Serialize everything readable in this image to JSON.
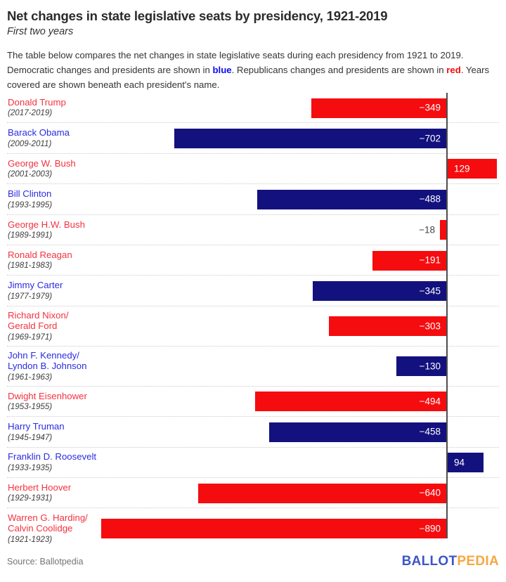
{
  "header": {
    "title": "Net changes in state legislative seats by presidency, 1921-2019",
    "subtitle": "First two years",
    "description_part1": "The table below compares the net changes in state legislative seats during each presidency from 1921 to 2019. Democratic changes and presidents are shown in ",
    "blue_word": "blue",
    "description_part2": ". Republicans changes and presidents are shown in ",
    "red_word": "red",
    "description_part3": ". Years covered are shown beneath each president's name."
  },
  "chart_data": {
    "type": "bar",
    "orientation": "horizontal",
    "title": "Net changes in state legislative seats by presidency, 1921-2019",
    "subtitle": "First two years",
    "value_label": "Net change in state legislative seats",
    "xlim": [
      -890,
      129
    ],
    "grid": "dotted row separators, vertical zero axis line",
    "legend": "none (color-coded: Democratic blue, Republican red)",
    "colors": {
      "democratic_bar": "#13117e",
      "republican_bar": "#f50c0f",
      "democratic_name": "#2b2be2",
      "republican_name": "#f43240",
      "blue_word": "#0b0bf5",
      "red_word": "#f50b0b",
      "zero_line": "#4d4d4d"
    },
    "rows": [
      {
        "president": "Donald Trump",
        "name_lines": [
          "Donald Trump"
        ],
        "years": "(2017-2019)",
        "party": "R",
        "value": -349
      },
      {
        "president": "Barack Obama",
        "name_lines": [
          "Barack Obama"
        ],
        "years": "(2009-2011)",
        "party": "D",
        "value": -702
      },
      {
        "president": "George W. Bush",
        "name_lines": [
          "George W. Bush"
        ],
        "years": "(2001-2003)",
        "party": "R",
        "value": 129
      },
      {
        "president": "Bill Clinton",
        "name_lines": [
          "Bill Clinton"
        ],
        "years": "(1993-1995)",
        "party": "D",
        "value": -488
      },
      {
        "president": "George H.W. Bush",
        "name_lines": [
          "George H.W. Bush"
        ],
        "years": "(1989-1991)",
        "party": "R",
        "value": -18
      },
      {
        "president": "Ronald Reagan",
        "name_lines": [
          "Ronald Reagan"
        ],
        "years": "(1981-1983)",
        "party": "R",
        "value": -191
      },
      {
        "president": "Jimmy Carter",
        "name_lines": [
          "Jimmy Carter"
        ],
        "years": "(1977-1979)",
        "party": "D",
        "value": -345
      },
      {
        "president": "Richard Nixon/Gerald Ford",
        "name_lines": [
          "Richard Nixon/",
          "Gerald Ford"
        ],
        "years": "(1969-1971)",
        "party": "R",
        "value": -303
      },
      {
        "president": "John F. Kennedy/Lyndon B. Johnson",
        "name_lines": [
          "John F. Kennedy/",
          "Lyndon B. Johnson"
        ],
        "years": "(1961-1963)",
        "party": "D",
        "value": -130
      },
      {
        "president": "Dwight Eisenhower",
        "name_lines": [
          "Dwight Eisenhower"
        ],
        "years": "(1953-1955)",
        "party": "R",
        "value": -494
      },
      {
        "president": "Harry Truman",
        "name_lines": [
          "Harry Truman"
        ],
        "years": "(1945-1947)",
        "party": "D",
        "value": -458
      },
      {
        "president": "Franklin D. Roosevelt",
        "name_lines": [
          "Franklin D. Roosevelt"
        ],
        "years": "(1933-1935)",
        "party": "D",
        "value": 94
      },
      {
        "president": "Herbert Hoover",
        "name_lines": [
          "Herbert Hoover"
        ],
        "years": "(1929-1931)",
        "party": "R",
        "value": -640
      },
      {
        "president": "Warren G. Harding/Calvin Coolidge",
        "name_lines": [
          "Warren G. Harding/",
          "Calvin Coolidge"
        ],
        "years": "(1921-1923)",
        "party": "R",
        "value": -890
      }
    ]
  },
  "footer": {
    "source": "Source: Ballotpedia",
    "logo_ballot": "BALLOT",
    "logo_pedia": "PEDIA",
    "logo_ballot_color": "#3c56c6",
    "logo_pedia_color": "#f6a83f"
  }
}
